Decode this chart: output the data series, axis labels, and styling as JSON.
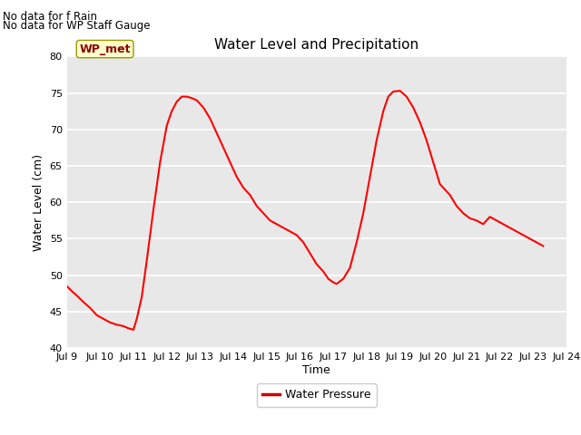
{
  "title": "Water Level and Precipitation",
  "xlabel": "Time",
  "ylabel": "Water Level (cm)",
  "ylim": [
    40,
    80
  ],
  "xlim": [
    9,
    24
  ],
  "xtick_labels": [
    "Jul 9",
    "Jul 10",
    "Jul 11",
    "Jul 12",
    "Jul 13",
    "Jul 14",
    "Jul 15",
    "Jul 16",
    "Jul 17",
    "Jul 18",
    "Jul 19",
    "Jul 20",
    "Jul 21",
    "Jul 22",
    "Jul 23",
    "Jul 24"
  ],
  "xtick_positions": [
    9,
    10,
    11,
    12,
    13,
    14,
    15,
    16,
    17,
    18,
    19,
    20,
    21,
    22,
    23,
    24
  ],
  "ytick_positions": [
    40,
    45,
    50,
    55,
    60,
    65,
    70,
    75,
    80
  ],
  "line_color": "#FF0000",
  "line_width": 1.5,
  "background_color": "#E8E8E8",
  "text_annotations": [
    "No data for f Rain",
    "No data for WP Staff Gauge"
  ],
  "wp_met_label": "WP_met",
  "wp_met_box_facecolor": "#FFFFCC",
  "wp_met_box_edgecolor": "#999900",
  "wp_met_text_color": "#8B0000",
  "legend_label": "Water Pressure",
  "legend_line_color": "#CC0000",
  "x_data": [
    9.0,
    9.15,
    9.3,
    9.5,
    9.7,
    9.9,
    10.1,
    10.3,
    10.5,
    10.7,
    10.85,
    11.0,
    11.1,
    11.25,
    11.4,
    11.6,
    11.8,
    12.0,
    12.15,
    12.3,
    12.45,
    12.6,
    12.75,
    12.9,
    13.1,
    13.3,
    13.5,
    13.7,
    13.9,
    14.1,
    14.3,
    14.5,
    14.7,
    14.9,
    15.1,
    15.3,
    15.5,
    15.7,
    15.9,
    16.1,
    16.3,
    16.5,
    16.7,
    16.85,
    17.0,
    17.1,
    17.3,
    17.5,
    17.7,
    17.9,
    18.1,
    18.3,
    18.5,
    18.65,
    18.8,
    19.0,
    19.2,
    19.4,
    19.6,
    19.8,
    20.0,
    20.2,
    20.5,
    20.7,
    20.9,
    21.1,
    21.3,
    21.5,
    21.7,
    21.9,
    22.1,
    22.3,
    22.5,
    22.7,
    22.9,
    23.1,
    23.3
  ],
  "y_data": [
    48.5,
    47.8,
    47.2,
    46.3,
    45.5,
    44.5,
    44.0,
    43.5,
    43.2,
    43.0,
    42.7,
    42.5,
    44.0,
    47.0,
    52.0,
    59.0,
    65.5,
    70.5,
    72.5,
    73.8,
    74.5,
    74.5,
    74.3,
    74.0,
    73.0,
    71.5,
    69.5,
    67.5,
    65.5,
    63.5,
    62.0,
    61.0,
    59.5,
    58.5,
    57.5,
    57.0,
    56.5,
    56.0,
    55.5,
    54.5,
    53.0,
    51.5,
    50.5,
    49.5,
    49.0,
    48.8,
    49.5,
    51.0,
    54.5,
    58.5,
    63.5,
    68.5,
    72.5,
    74.5,
    75.2,
    75.3,
    74.5,
    73.0,
    71.0,
    68.5,
    65.5,
    62.5,
    61.0,
    59.5,
    58.5,
    57.8,
    57.5,
    57.0,
    58.0,
    57.5,
    57.0,
    56.5,
    56.0,
    55.5,
    55.0,
    54.5,
    54.0
  ]
}
